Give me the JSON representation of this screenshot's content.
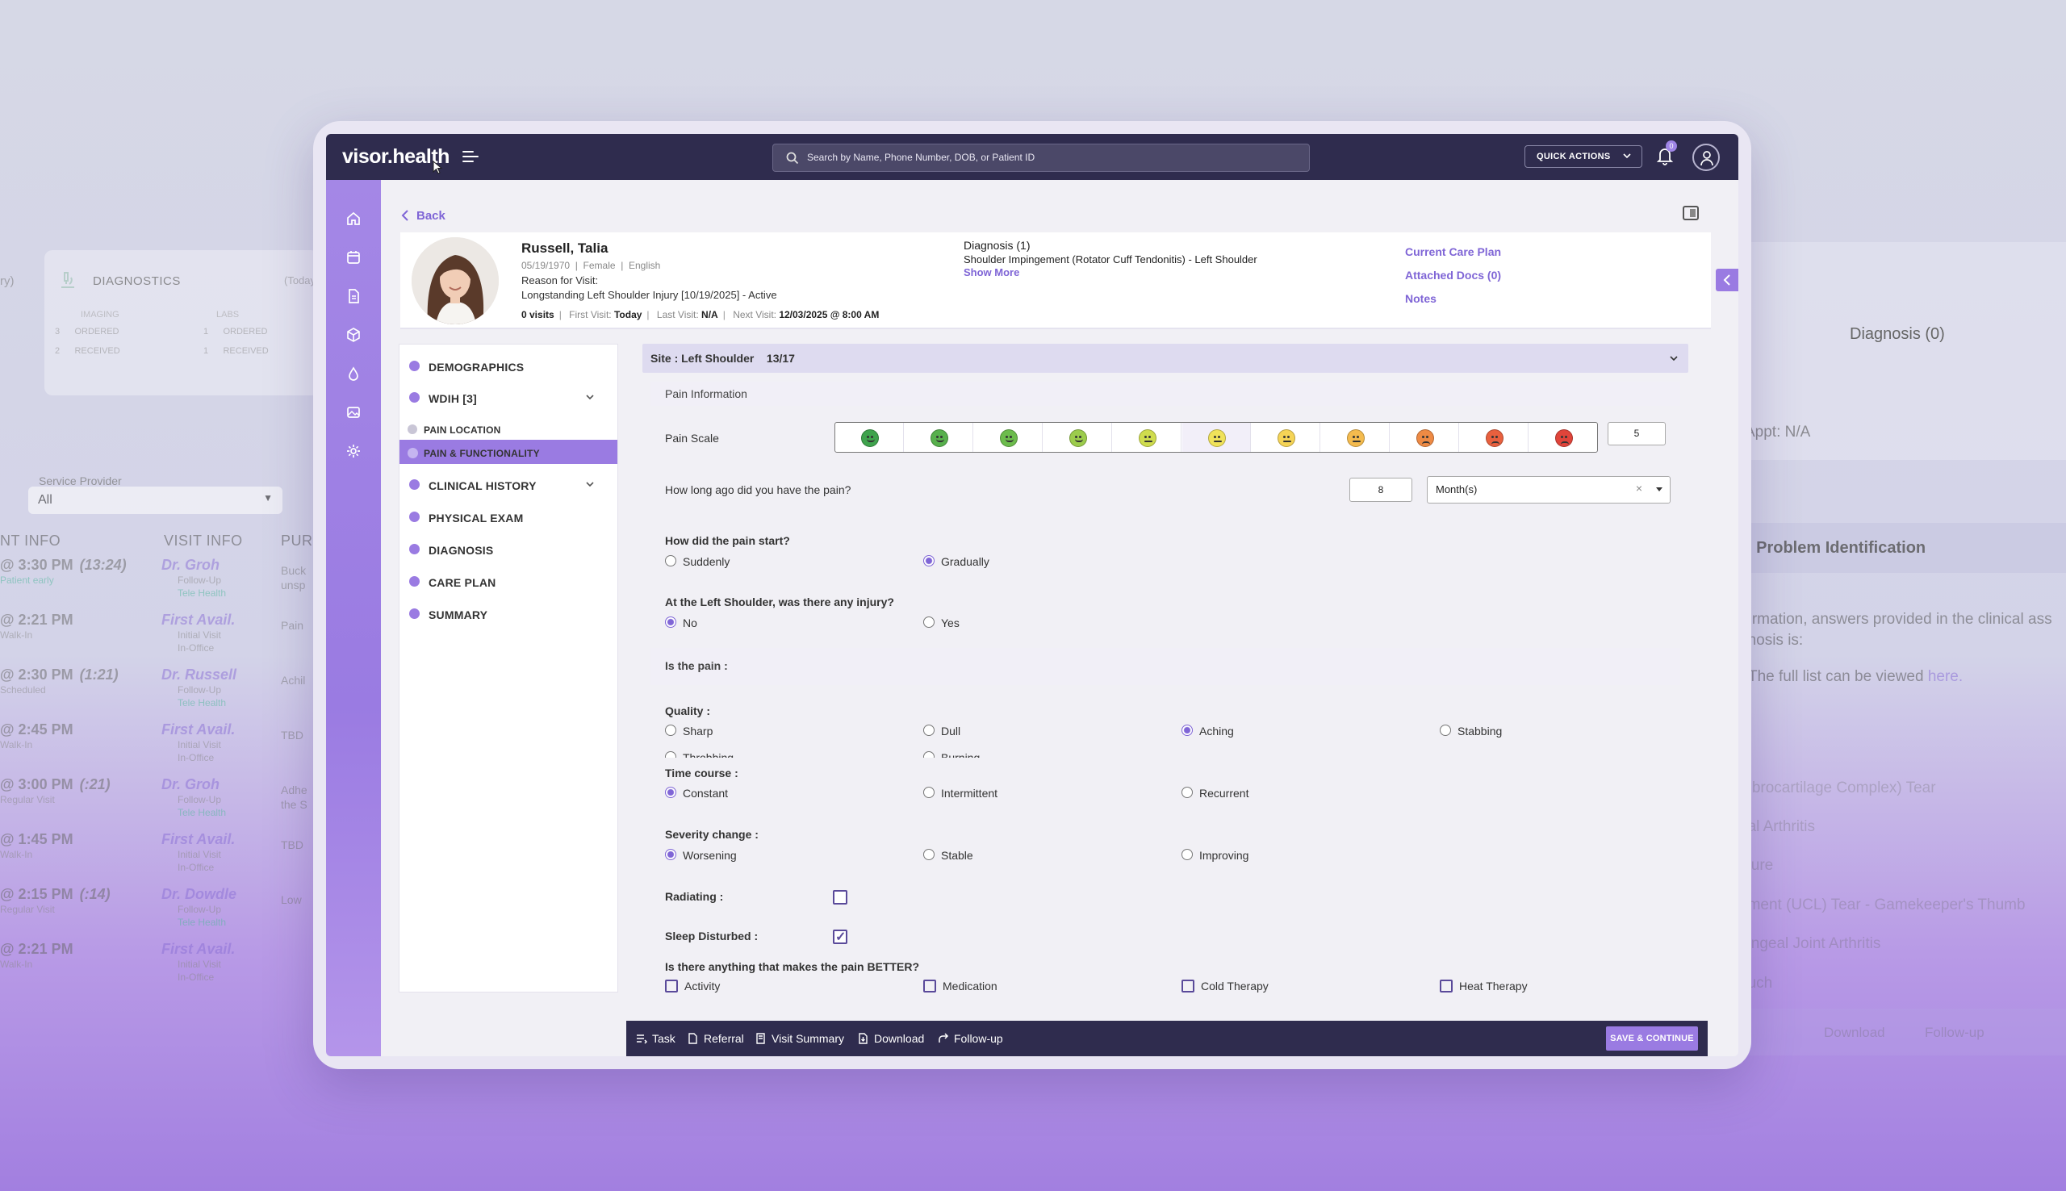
{
  "background": {
    "left": {
      "diagnostics_title": "DIAGNOSTICS",
      "diagnostics_today": "(Today",
      "imaging_label": "IMAGING",
      "labs_label": "LABS",
      "imaging_rows": [
        {
          "count": "3",
          "label": "ORDERED"
        },
        {
          "count": "2",
          "label": "RECEIVED"
        }
      ],
      "labs_rows": [
        {
          "count": "1",
          "label": "ORDERED"
        },
        {
          "count": "1",
          "label": "RECEIVED"
        }
      ],
      "service_provider_label": "Service Provider",
      "service_provider_value": "All",
      "columns": [
        "NT INFO",
        "VISIT INFO",
        "PURP"
      ],
      "rows": [
        {
          "time": "@ 3:30 PM",
          "extra": "(13:24)",
          "sub": "Patient early",
          "doctor": "Dr. Groh",
          "visit": "Follow-Up",
          "mode": "Tele Health",
          "purpose": "Buck unsp"
        },
        {
          "time": "@ 2:21 PM",
          "extra": "",
          "sub": "Walk-In",
          "doctor": "First Avail.",
          "visit": "Initial Visit",
          "mode": "In-Office",
          "purpose": "Pain"
        },
        {
          "time": "@ 2:30 PM",
          "extra": "(1:21)",
          "sub": "Scheduled",
          "doctor": "Dr. Russell",
          "visit": "Follow-Up",
          "mode": "Tele Health",
          "purpose": "Achil"
        },
        {
          "time": "@ 2:45 PM",
          "extra": "",
          "sub": "Walk-In",
          "doctor": "First Avail.",
          "visit": "Initial Visit",
          "mode": "In-Office",
          "purpose": "TBD"
        },
        {
          "time": "@ 3:00 PM",
          "extra": "(:21)",
          "sub": "Regular Visit",
          "doctor": "Dr. Groh",
          "visit": "Follow-Up",
          "mode": "Tele Health",
          "purpose": "Adhe the S"
        },
        {
          "time": "@ 1:45 PM",
          "extra": "",
          "sub": "Walk-In",
          "doctor": "First Avail.",
          "visit": "Initial Visit",
          "mode": "In-Office",
          "purpose": "TBD"
        },
        {
          "time": "@ 2:15 PM",
          "extra": "(:14)",
          "sub": "Regular Visit",
          "doctor": "Dr. Dowdle",
          "visit": "Follow-Up",
          "mode": "Tele Health",
          "purpose": "Low"
        },
        {
          "time": "@ 2:21 PM",
          "extra": "",
          "sub": "Walk-In",
          "doctor": "First Avail.",
          "visit": "Initial Visit",
          "mode": "In-Office",
          "purpose": ""
        }
      ]
    },
    "right": {
      "diagnosis": "Diagnosis (0)",
      "appt": "Appt: N/A",
      "problem_title": "l Problem Identification",
      "text1": "formation, answers provided in the clinical ass",
      "text2": "gnosis is:",
      "text3": "The full list can be viewed",
      "text3_link": "here.",
      "list": [
        "Fibrocartilage Complex) Tear",
        "pal Arthritis",
        "cture",
        "ament (UCL) Tear - Gamekeeper's Thumb",
        "langeal Joint Arthritis",
        "ouch"
      ],
      "toolbar_items": [
        "Download",
        "Follow-up"
      ]
    }
  },
  "app": {
    "logo": "visor.health",
    "search_placeholder": "Search by Name, Phone Number, DOB, or Patient ID",
    "quick_actions": "QUICK ACTIONS",
    "notification_count": "0",
    "back": "Back"
  },
  "patient": {
    "name": "Russell, Talia",
    "dob": "05/19/1970",
    "sex": "Female",
    "language": "English",
    "reason_label": "Reason for Visit:",
    "reason": "Longstanding Left Shoulder Injury [10/19/2025] - Active",
    "visits": "0 visits",
    "first_visit_label": "First Visit:",
    "first_visit": "Today",
    "last_visit_label": "Last Visit:",
    "last_visit": "N/A",
    "next_visit_label": "Next Visit:",
    "next_visit": "12/03/2025 @ 8:00 AM",
    "diagnosis_title": "Diagnosis (1)",
    "diagnosis": "Shoulder Impingement (Rotator Cuff Tendonitis) - Left Shoulder",
    "show_more": "Show More",
    "links": [
      "Current Care Plan",
      "Attached Docs (0)",
      "Notes"
    ]
  },
  "steps": [
    {
      "label": "DEMOGRAPHICS",
      "expandable": false,
      "active": false
    },
    {
      "label": "WDIH [3]",
      "expandable": true,
      "active": false
    },
    {
      "label": "PAIN LOCATION",
      "expandable": false,
      "active": false,
      "sub": true
    },
    {
      "label": "PAIN & FUNCTIONALITY",
      "expandable": false,
      "active": true,
      "sub": true
    },
    {
      "label": "CLINICAL HISTORY",
      "expandable": true,
      "active": false
    },
    {
      "label": "PHYSICAL EXAM",
      "expandable": false,
      "active": false
    },
    {
      "label": "DIAGNOSIS",
      "expandable": false,
      "active": false
    },
    {
      "label": "CARE PLAN",
      "expandable": false,
      "active": false
    },
    {
      "label": "SUMMARY",
      "expandable": false,
      "active": false
    }
  ],
  "form": {
    "site": "Site : Left Shoulder",
    "site_count": "13/17",
    "pain_info": "Pain Information",
    "pain_scale_label": "Pain Scale",
    "pain_scale_value": "5",
    "pain_scale_selected_index": 5,
    "pain_faces": [
      "#3fa34d",
      "#57b04c",
      "#6cbc4c",
      "#9ccc4c",
      "#cfdc4e",
      "#f0e25a",
      "#f5d456",
      "#f4bb4e",
      "#ee8a44",
      "#e8603e",
      "#e0443a"
    ],
    "duration_q": "How long ago did you have the pain?",
    "duration_value": "8",
    "duration_unit": "Month(s)",
    "start_q": "How did the pain start?",
    "start_opts": [
      {
        "label": "Suddenly",
        "on": false
      },
      {
        "label": "Gradually",
        "on": true
      }
    ],
    "injury_q": "At the Left Shoulder, was there any injury?",
    "injury_opts": [
      {
        "label": "No",
        "on": true
      },
      {
        "label": "Yes",
        "on": false
      }
    ],
    "is_pain": "Is the pain :",
    "quality_label": "Quality :",
    "quality_opts": [
      {
        "label": "Sharp",
        "on": false
      },
      {
        "label": "Dull",
        "on": false
      },
      {
        "label": "Aching",
        "on": true
      },
      {
        "label": "Stabbing",
        "on": false
      },
      {
        "label": "Throbbing",
        "on": false
      },
      {
        "label": "Burning",
        "on": false
      }
    ],
    "time_label": "Time course :",
    "time_opts": [
      {
        "label": "Constant",
        "on": true
      },
      {
        "label": "Intermittent",
        "on": false
      },
      {
        "label": "Recurrent",
        "on": false
      }
    ],
    "severity_label": "Severity change :",
    "severity_opts": [
      {
        "label": "Worsening",
        "on": true
      },
      {
        "label": "Stable",
        "on": false
      },
      {
        "label": "Improving",
        "on": false
      }
    ],
    "radiating_label": "Radiating :",
    "radiating": false,
    "sleep_label": "Sleep Disturbed :",
    "sleep": true,
    "better_q": "Is there anything that makes the pain BETTER?",
    "better_opts": [
      "Activity",
      "Medication",
      "Cold Therapy",
      "Heat Therapy"
    ]
  },
  "toolbar": {
    "items": [
      "Task",
      "Referral",
      "Visit Summary",
      "Download",
      "Follow-up"
    ],
    "save": "SAVE & CONTINUE"
  },
  "colors": {
    "accent": "#9a7be2",
    "navy": "#2f2c4e",
    "link": "#7f65d6"
  }
}
